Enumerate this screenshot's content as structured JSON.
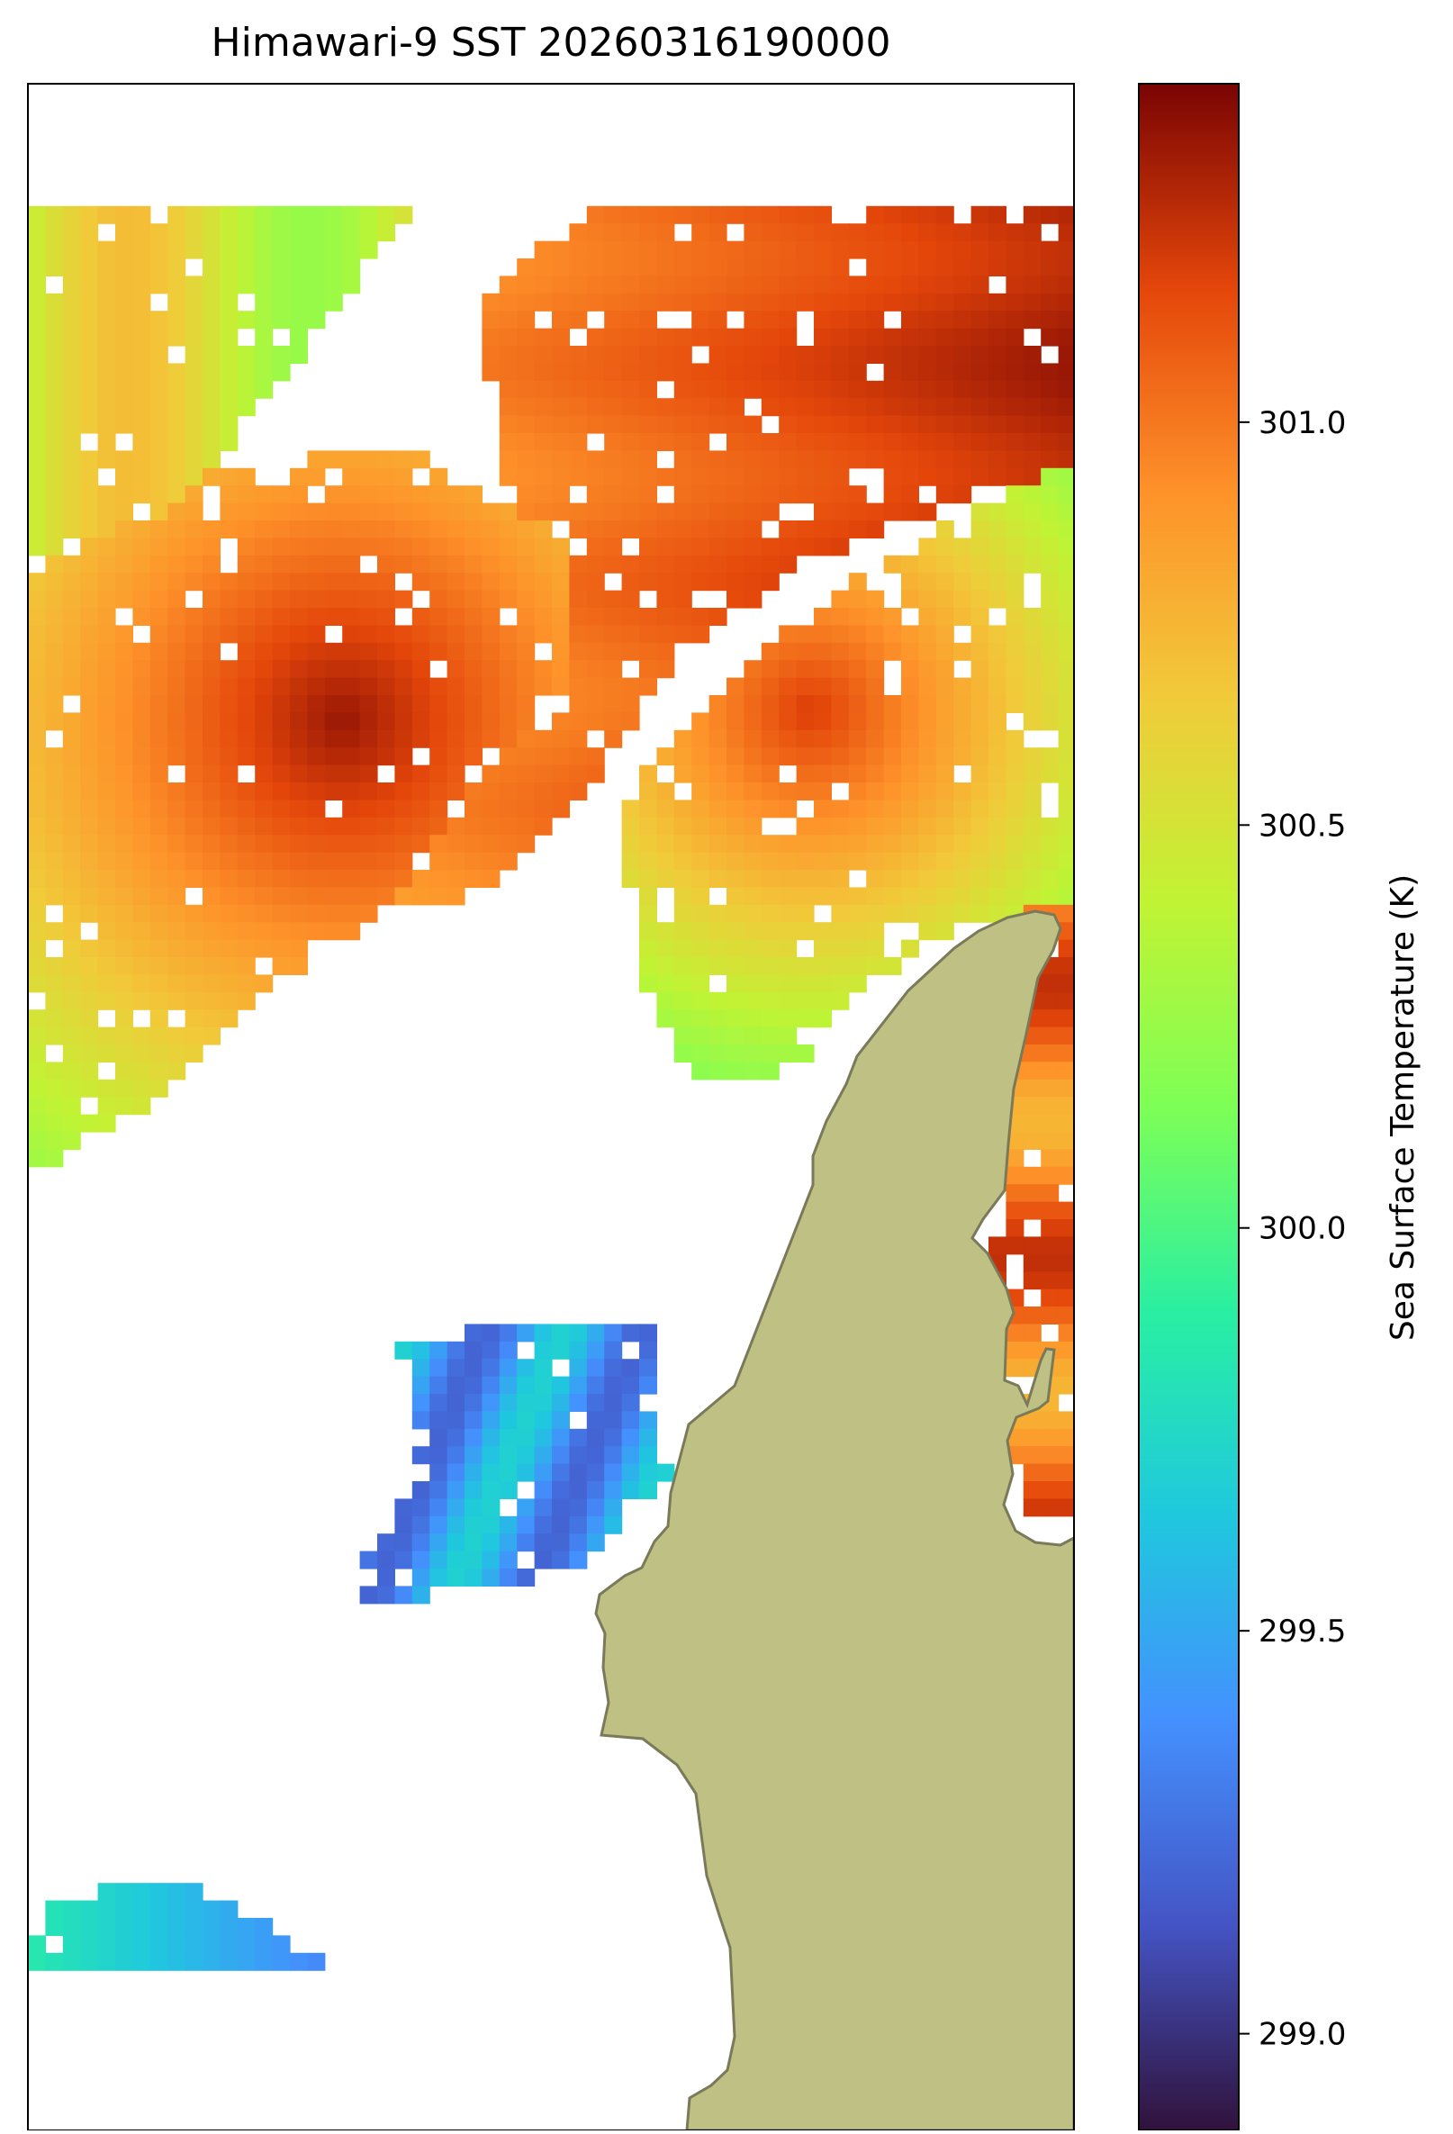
{
  "chart_data": {
    "type": "heatmap",
    "title": "Himawari-9 SST 20260316190000",
    "colorbar": {
      "label": "Sea Surface Temperature (K)",
      "range": [
        298.88,
        301.42
      ],
      "ticks": [
        "299.0",
        "299.5",
        "300.0",
        "300.5",
        "301.0"
      ],
      "tick_values": [
        299.0,
        299.5,
        300.0,
        300.5,
        301.0
      ],
      "colormap": "turbo"
    },
    "land_color": "#bfc083",
    "coastline_color": "#7a7a5a"
  }
}
